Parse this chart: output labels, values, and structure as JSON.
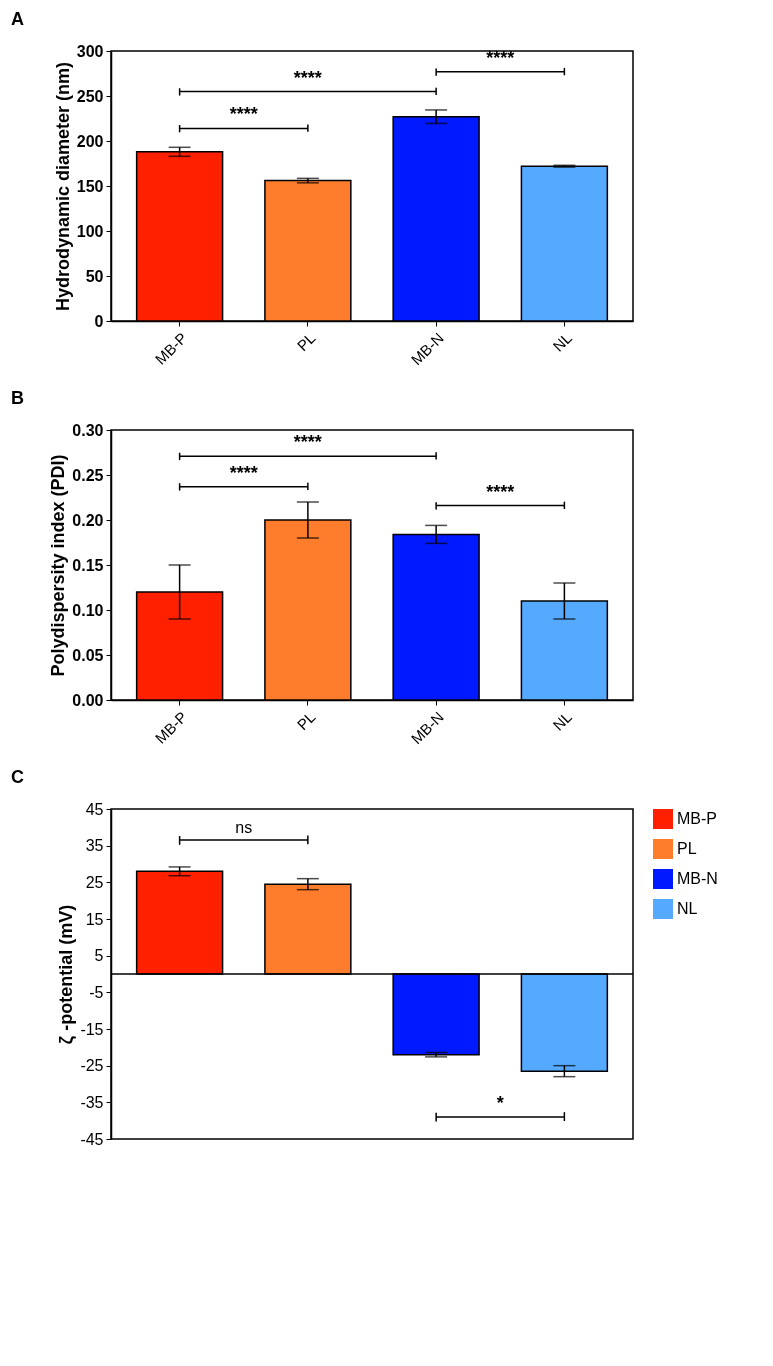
{
  "chart_data": [
    {
      "type": "bar",
      "title": "A",
      "ylabel": "Hydrodynamic diameter (nm)",
      "categories": [
        "MB-P",
        "PL",
        "MB-N",
        "NL"
      ],
      "values": [
        188,
        156,
        227,
        172
      ],
      "errors": [
        5,
        2.5,
        7.5,
        1
      ],
      "colors": [
        "#ff2000",
        "#fe7d2c",
        "#0019ff",
        "#55aaff"
      ],
      "ylim": [
        0,
        300
      ],
      "yticks": [
        0,
        50,
        100,
        150,
        200,
        250,
        300
      ],
      "grid": false,
      "legend": false,
      "annotations": [
        "****",
        "****",
        "****"
      ]
    },
    {
      "type": "bar",
      "title": "B",
      "ylabel": "Polydispersity index  (PDI)",
      "categories": [
        "MB-P",
        "PL",
        "MB-N",
        "NL"
      ],
      "values": [
        0.12,
        0.2,
        0.184,
        0.11
      ],
      "errors": [
        0.03,
        0.02,
        0.01,
        0.02
      ],
      "colors": [
        "#ff2000",
        "#fe7d2c",
        "#0019ff",
        "#55aaff"
      ],
      "ylim": [
        0,
        0.3
      ],
      "yticks": [
        {
          "value": 0,
          "label": "0.00"
        },
        {
          "value": 0.05,
          "label": "0.05"
        },
        {
          "value": 0.1,
          "label": "0.10"
        },
        {
          "value": 0.15,
          "label": "0.15"
        },
        {
          "value": 0.2,
          "label": "0.20"
        },
        {
          "value": 0.25,
          "label": "0.25"
        },
        {
          "value": 0.3,
          "label": "0.30"
        }
      ],
      "grid": false,
      "legend": false,
      "annotations": [
        "****",
        "****",
        "****"
      ]
    },
    {
      "type": "bar",
      "title": "C",
      "ylabel": "ζ -potential (mV)",
      "categories": [
        null,
        null,
        null,
        null
      ],
      "series": [
        {
          "name": "MB-P",
          "color": "#ff2000",
          "values": [
            28,
            null,
            null,
            null
          ],
          "errors": [
            1.2,
            null,
            null,
            null
          ]
        },
        {
          "name": "PL",
          "color": "#fe7d2c",
          "values": [
            null,
            24.5,
            null,
            null
          ],
          "errors": [
            null,
            1.5,
            null,
            null
          ]
        },
        {
          "name": "MB-N",
          "color": "#0019ff",
          "values": [
            null,
            null,
            -22,
            null
          ],
          "errors": [
            null,
            null,
            0.6,
            null
          ]
        },
        {
          "name": "NL",
          "color": "#55aaff",
          "values": [
            null,
            null,
            null,
            -26.5
          ],
          "errors": [
            null,
            null,
            null,
            1.5
          ]
        }
      ],
      "ylim": [
        -45,
        45
      ],
      "yticks": [
        -45,
        -35,
        -25,
        -15,
        -5,
        5,
        15,
        25,
        35,
        45
      ],
      "grid": false,
      "legend": "right",
      "tick_labels": "y",
      "annotations": [
        "ns",
        "*"
      ]
    }
  ]
}
